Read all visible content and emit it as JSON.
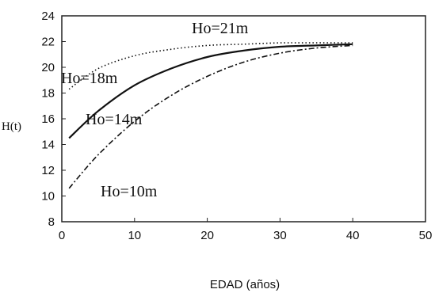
{
  "chart_data": {
    "type": "line",
    "title": "",
    "xlabel": "EDAD (años)",
    "ylabel": "H(t)",
    "xlim": [
      0,
      50
    ],
    "ylim": [
      8,
      24
    ],
    "xticks": [
      "0",
      "10",
      "20",
      "30",
      "40",
      "50"
    ],
    "yticks": [
      "8",
      "10",
      "12",
      "14",
      "16",
      "18",
      "20",
      "22",
      "24"
    ],
    "grid": false,
    "annotations": [
      "Ho=21m",
      "Ho=18m",
      "Ho=14m",
      "Ho=10m"
    ],
    "series": [
      {
        "style": "dotted",
        "x": [
          1,
          5,
          10,
          15,
          20,
          25,
          30,
          35,
          40
        ],
        "y": [
          18.3,
          19.9,
          20.9,
          21.4,
          21.7,
          21.8,
          21.9,
          21.9,
          21.9
        ]
      },
      {
        "style": "solid",
        "x": [
          1,
          5,
          10,
          15,
          20,
          25,
          30,
          35,
          40
        ],
        "y": [
          14.5,
          16.6,
          18.6,
          19.9,
          20.8,
          21.3,
          21.6,
          21.7,
          21.8
        ]
      },
      {
        "style": "dashdot",
        "x": [
          1,
          5,
          10,
          15,
          20,
          25,
          30,
          35,
          40
        ],
        "y": [
          10.6,
          13.2,
          15.8,
          17.8,
          19.3,
          20.4,
          21.1,
          21.5,
          21.7
        ]
      }
    ]
  }
}
